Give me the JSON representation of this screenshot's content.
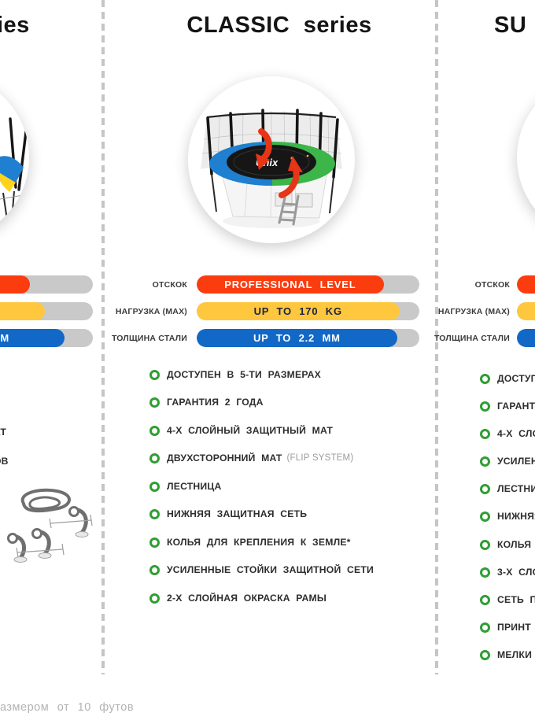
{
  "page": {
    "background": "#ffffff",
    "track_color": "#c9c9c9",
    "bullet_color": "#2f9e33",
    "footnote_fragment": "азмером от 10 футов"
  },
  "columns": {
    "left": {
      "title_fragment": "ies",
      "bars": [
        {
          "color": "#fa3c0f",
          "fill_pct": 71.7,
          "value_fragment": ""
        },
        {
          "color": "#fec73e",
          "fill_pct": 78.5,
          "value_fragment": ""
        },
        {
          "color": "#1168c6",
          "fill_pct": 87.3,
          "value_fragment": "M",
          "text_color": "#ffffff"
        }
      ],
      "feature_fragments": [
        "АТ",
        "ОВ"
      ]
    },
    "classic": {
      "title": "CLASSIC series",
      "image": {
        "logo_text": "Unix",
        "pad_left_color": "#1f7fd1",
        "pad_right_color": "#3cb549",
        "arrow_color": "#e63517"
      },
      "bars": [
        {
          "label": "ОТСКОК",
          "value": "PROFESSIONAL LEVEL",
          "color": "#fa3c0f",
          "text_color": "#ffffff",
          "fill_pct": 84
        },
        {
          "label": "НАГРУЗКА (MAX)",
          "value": "UP TO 170 KG",
          "color": "#fec73e",
          "text_color": "#1b2440",
          "fill_pct": 91
        },
        {
          "label": "ТОЛЩИНА СТАЛИ",
          "value": "UP TO 2.2 MM",
          "color": "#1168c6",
          "text_color": "#ffffff",
          "fill_pct": 90
        }
      ],
      "features": [
        {
          "text": "ДОСТУПЕН В 5-ТИ РАЗМЕРАХ",
          "note": ""
        },
        {
          "text": "ГАРАНТИЯ 2 ГОДА",
          "note": ""
        },
        {
          "text": "4-Х СЛОЙНЫЙ ЗАЩИТНЫЙ МАТ",
          "note": ""
        },
        {
          "text": "ДВУХСТОРОННИЙ МАТ",
          "note": "(FLIP SYSTEM)"
        },
        {
          "text": "ЛЕСТНИЦА",
          "note": ""
        },
        {
          "text": "НИЖНЯЯ ЗАЩИТНАЯ СЕТЬ",
          "note": ""
        },
        {
          "text": "КОЛЬЯ ДЛЯ КРЕПЛЕНИЯ К ЗЕМЛЕ*",
          "note": ""
        },
        {
          "text": "УСИЛЕННЫЕ СТОЙКИ ЗАЩИТНОЙ СЕТИ",
          "note": ""
        },
        {
          "text": "2-Х СЛОЙНАЯ ОКРАСКА РАМЫ",
          "note": ""
        }
      ]
    },
    "right": {
      "title_fragment": "SU",
      "bars": [
        {
          "label": "ОТСКОК",
          "color": "#fa3c0f",
          "fill_pct": 85
        },
        {
          "label": "НАГРУЗКА (MAX)",
          "color": "#fec73e",
          "fill_pct": 92
        },
        {
          "label": "ТОЛЩИНА СТАЛИ",
          "color": "#1168c6",
          "fill_pct": 92
        }
      ],
      "feature_fragments": [
        "ДОСТУП",
        "ГАРАНТИ",
        "4-Х СЛО",
        "УСИЛЕН",
        "ЛЕСТНИ",
        "НИЖНЯЯ",
        "КОЛЬЯ Д",
        "3-Х СЛО",
        "СЕТЬ ПО",
        "ПРИНТ",
        "МЕЛКИ"
      ]
    }
  }
}
